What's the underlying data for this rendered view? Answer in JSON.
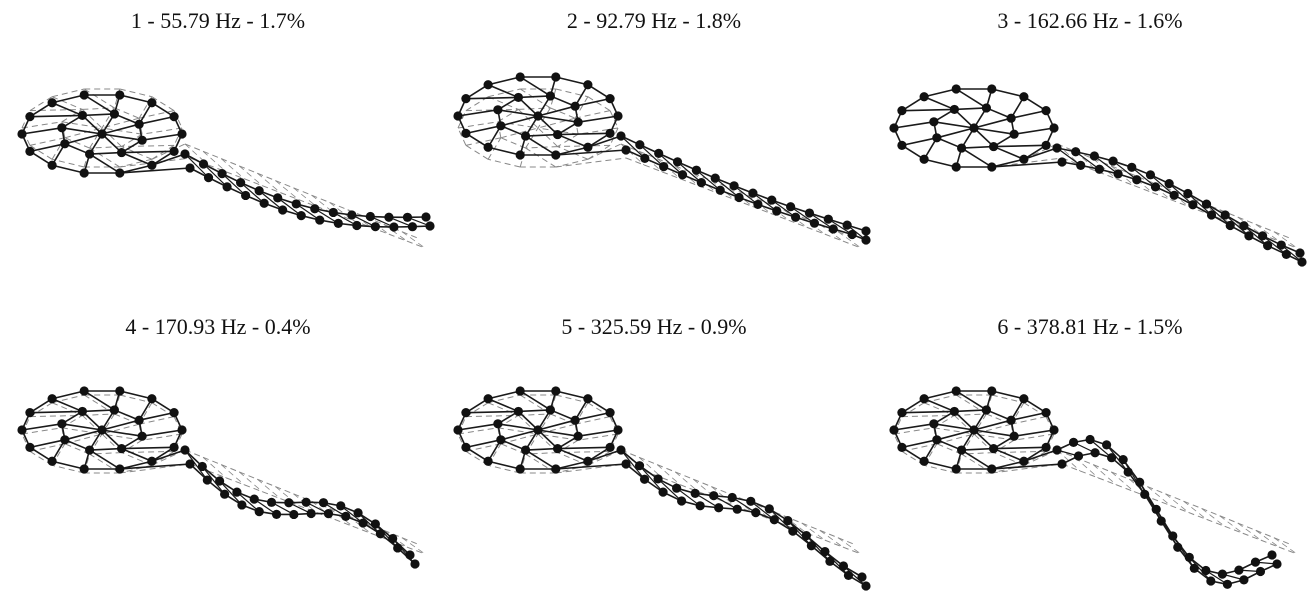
{
  "modes": [
    {
      "index": 1,
      "title": "1 - 55.79 Hz - 1.7%"
    },
    {
      "index": 2,
      "title": "2 - 92.79 Hz - 1.8%"
    },
    {
      "index": 3,
      "title": "3 - 162.66 Hz - 1.6%"
    },
    {
      "index": 4,
      "title": "4 - 170.93 Hz - 0.4%"
    },
    {
      "index": 5,
      "title": "5 - 325.59 Hz - 0.9%"
    },
    {
      "index": 6,
      "title": "6 - 378.81 Hz - 1.5%"
    }
  ],
  "colors": {
    "deformed": "#1a1a1a",
    "undeformed": "#888888",
    "node": "#111111"
  }
}
